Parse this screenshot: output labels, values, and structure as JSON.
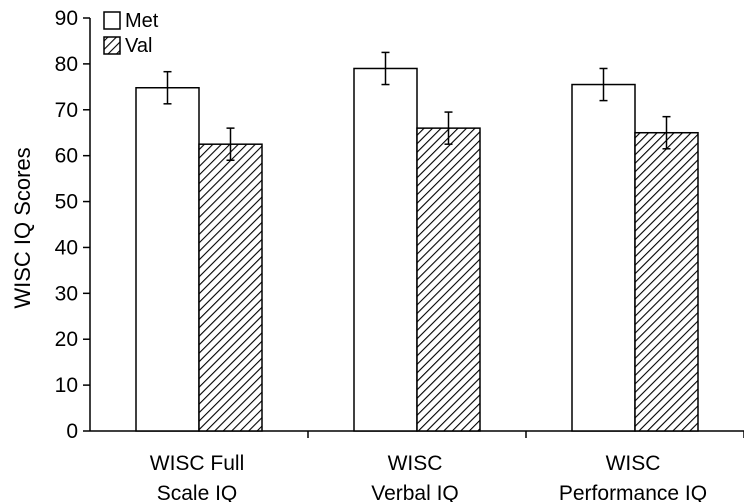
{
  "chart_data": {
    "type": "bar",
    "title": "",
    "xlabel": "",
    "ylabel": "WISC IQ Scores",
    "ylim": [
      0,
      90
    ],
    "yticks": [
      0,
      10,
      20,
      30,
      40,
      50,
      60,
      70,
      80,
      90
    ],
    "categories": [
      [
        "WISC Full",
        "Scale IQ"
      ],
      [
        "WISC",
        "Verbal IQ"
      ],
      [
        "WISC",
        "Performance IQ"
      ]
    ],
    "series": [
      {
        "name": "Met",
        "fill": "white",
        "values": [
          74.8,
          79.0,
          75.5
        ],
        "errors": [
          3.5,
          3.5,
          3.5
        ]
      },
      {
        "name": "Val",
        "fill": "hatched",
        "values": [
          62.5,
          66.0,
          65.0
        ],
        "errors": [
          3.5,
          3.5,
          3.5
        ]
      }
    ],
    "legend": "top-left",
    "grid": false,
    "colors": {
      "axis": "#000000",
      "bar_fill": "#ffffff",
      "hatch": "#000000"
    }
  }
}
